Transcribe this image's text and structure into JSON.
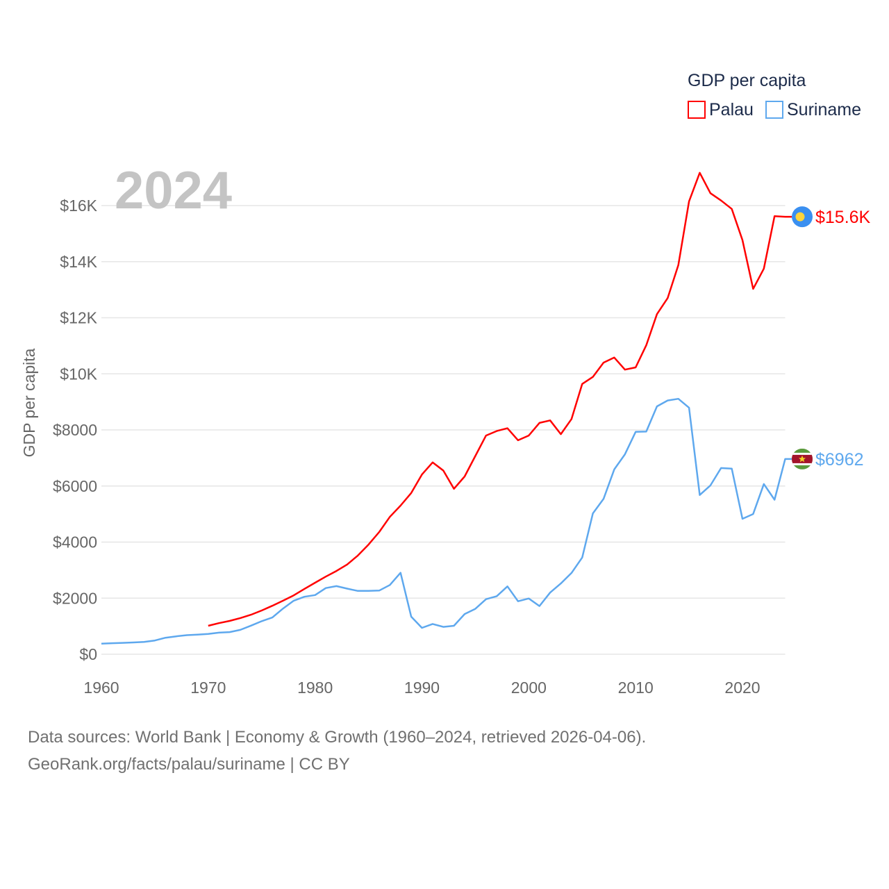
{
  "chart_data": {
    "type": "line",
    "year_label": "2024",
    "ylabel": "GDP per capita",
    "xlabel": "",
    "xlim": [
      1960,
      2024
    ],
    "ylim": [
      0,
      17500
    ],
    "grid": true,
    "x_ticks": [
      1960,
      1970,
      1980,
      1990,
      2000,
      2010,
      2020
    ],
    "x_tick_labels": [
      "1960",
      "1970",
      "1980",
      "1990",
      "2000",
      "2010",
      "2020"
    ],
    "y_ticks": [
      0,
      2000,
      4000,
      6000,
      8000,
      10000,
      12000,
      14000,
      16000
    ],
    "y_tick_labels": [
      "$0",
      "$2000",
      "$4000",
      "$6000",
      "$8000",
      "$10K",
      "$12K",
      "$14K",
      "$16K"
    ],
    "legend": {
      "title": "GDP per capita",
      "placement": "top-right"
    },
    "series": [
      {
        "name": "Palau",
        "color": "#ff0000",
        "start_year": 1970,
        "end_label": "$15.6K",
        "flag_icon": "palau-flag-icon",
        "values": [
          1015,
          1110,
          1190,
          1290,
          1410,
          1560,
          1730,
          1910,
          2100,
          2330,
          2550,
          2770,
          2970,
          3200,
          3520,
          3910,
          4360,
          4900,
          5300,
          5750,
          6410,
          6840,
          6550,
          5900,
          6340,
          7070,
          7800,
          7960,
          8060,
          7630,
          7800,
          8250,
          8340,
          7850,
          8390,
          9640,
          9890,
          10400,
          10580,
          10150,
          10230,
          11020,
          12130,
          12700,
          13880,
          16150,
          17170,
          16440,
          16180,
          15880,
          14770,
          13030,
          13750,
          15620,
          15600
        ]
      },
      {
        "name": "Suriname",
        "color": "#5ea8ee",
        "start_year": 1960,
        "end_label": "$6962",
        "flag_icon": "suriname-flag-icon",
        "values": [
          380,
          395,
          405,
          420,
          440,
          490,
          590,
          640,
          680,
          700,
          725,
          770,
          790,
          870,
          1020,
          1180,
          1310,
          1630,
          1910,
          2050,
          2110,
          2360,
          2430,
          2340,
          2260,
          2260,
          2270,
          2470,
          2905,
          1340,
          940,
          1080,
          975,
          1015,
          1435,
          1620,
          1965,
          2070,
          2420,
          1890,
          1990,
          1720,
          2200,
          2525,
          2900,
          3450,
          5020,
          5540,
          6590,
          7130,
          7930,
          7940,
          8840,
          9050,
          9110,
          8790,
          5680,
          6020,
          6640,
          6620,
          4830,
          5000,
          6070,
          5510,
          6962
        ]
      }
    ]
  },
  "footer": {
    "line1": "Data sources: World Bank | Economy & Growth (1960–2024, retrieved 2026-04-06).",
    "line2": "GeoRank.org/facts/palau/suriname | CC BY"
  }
}
